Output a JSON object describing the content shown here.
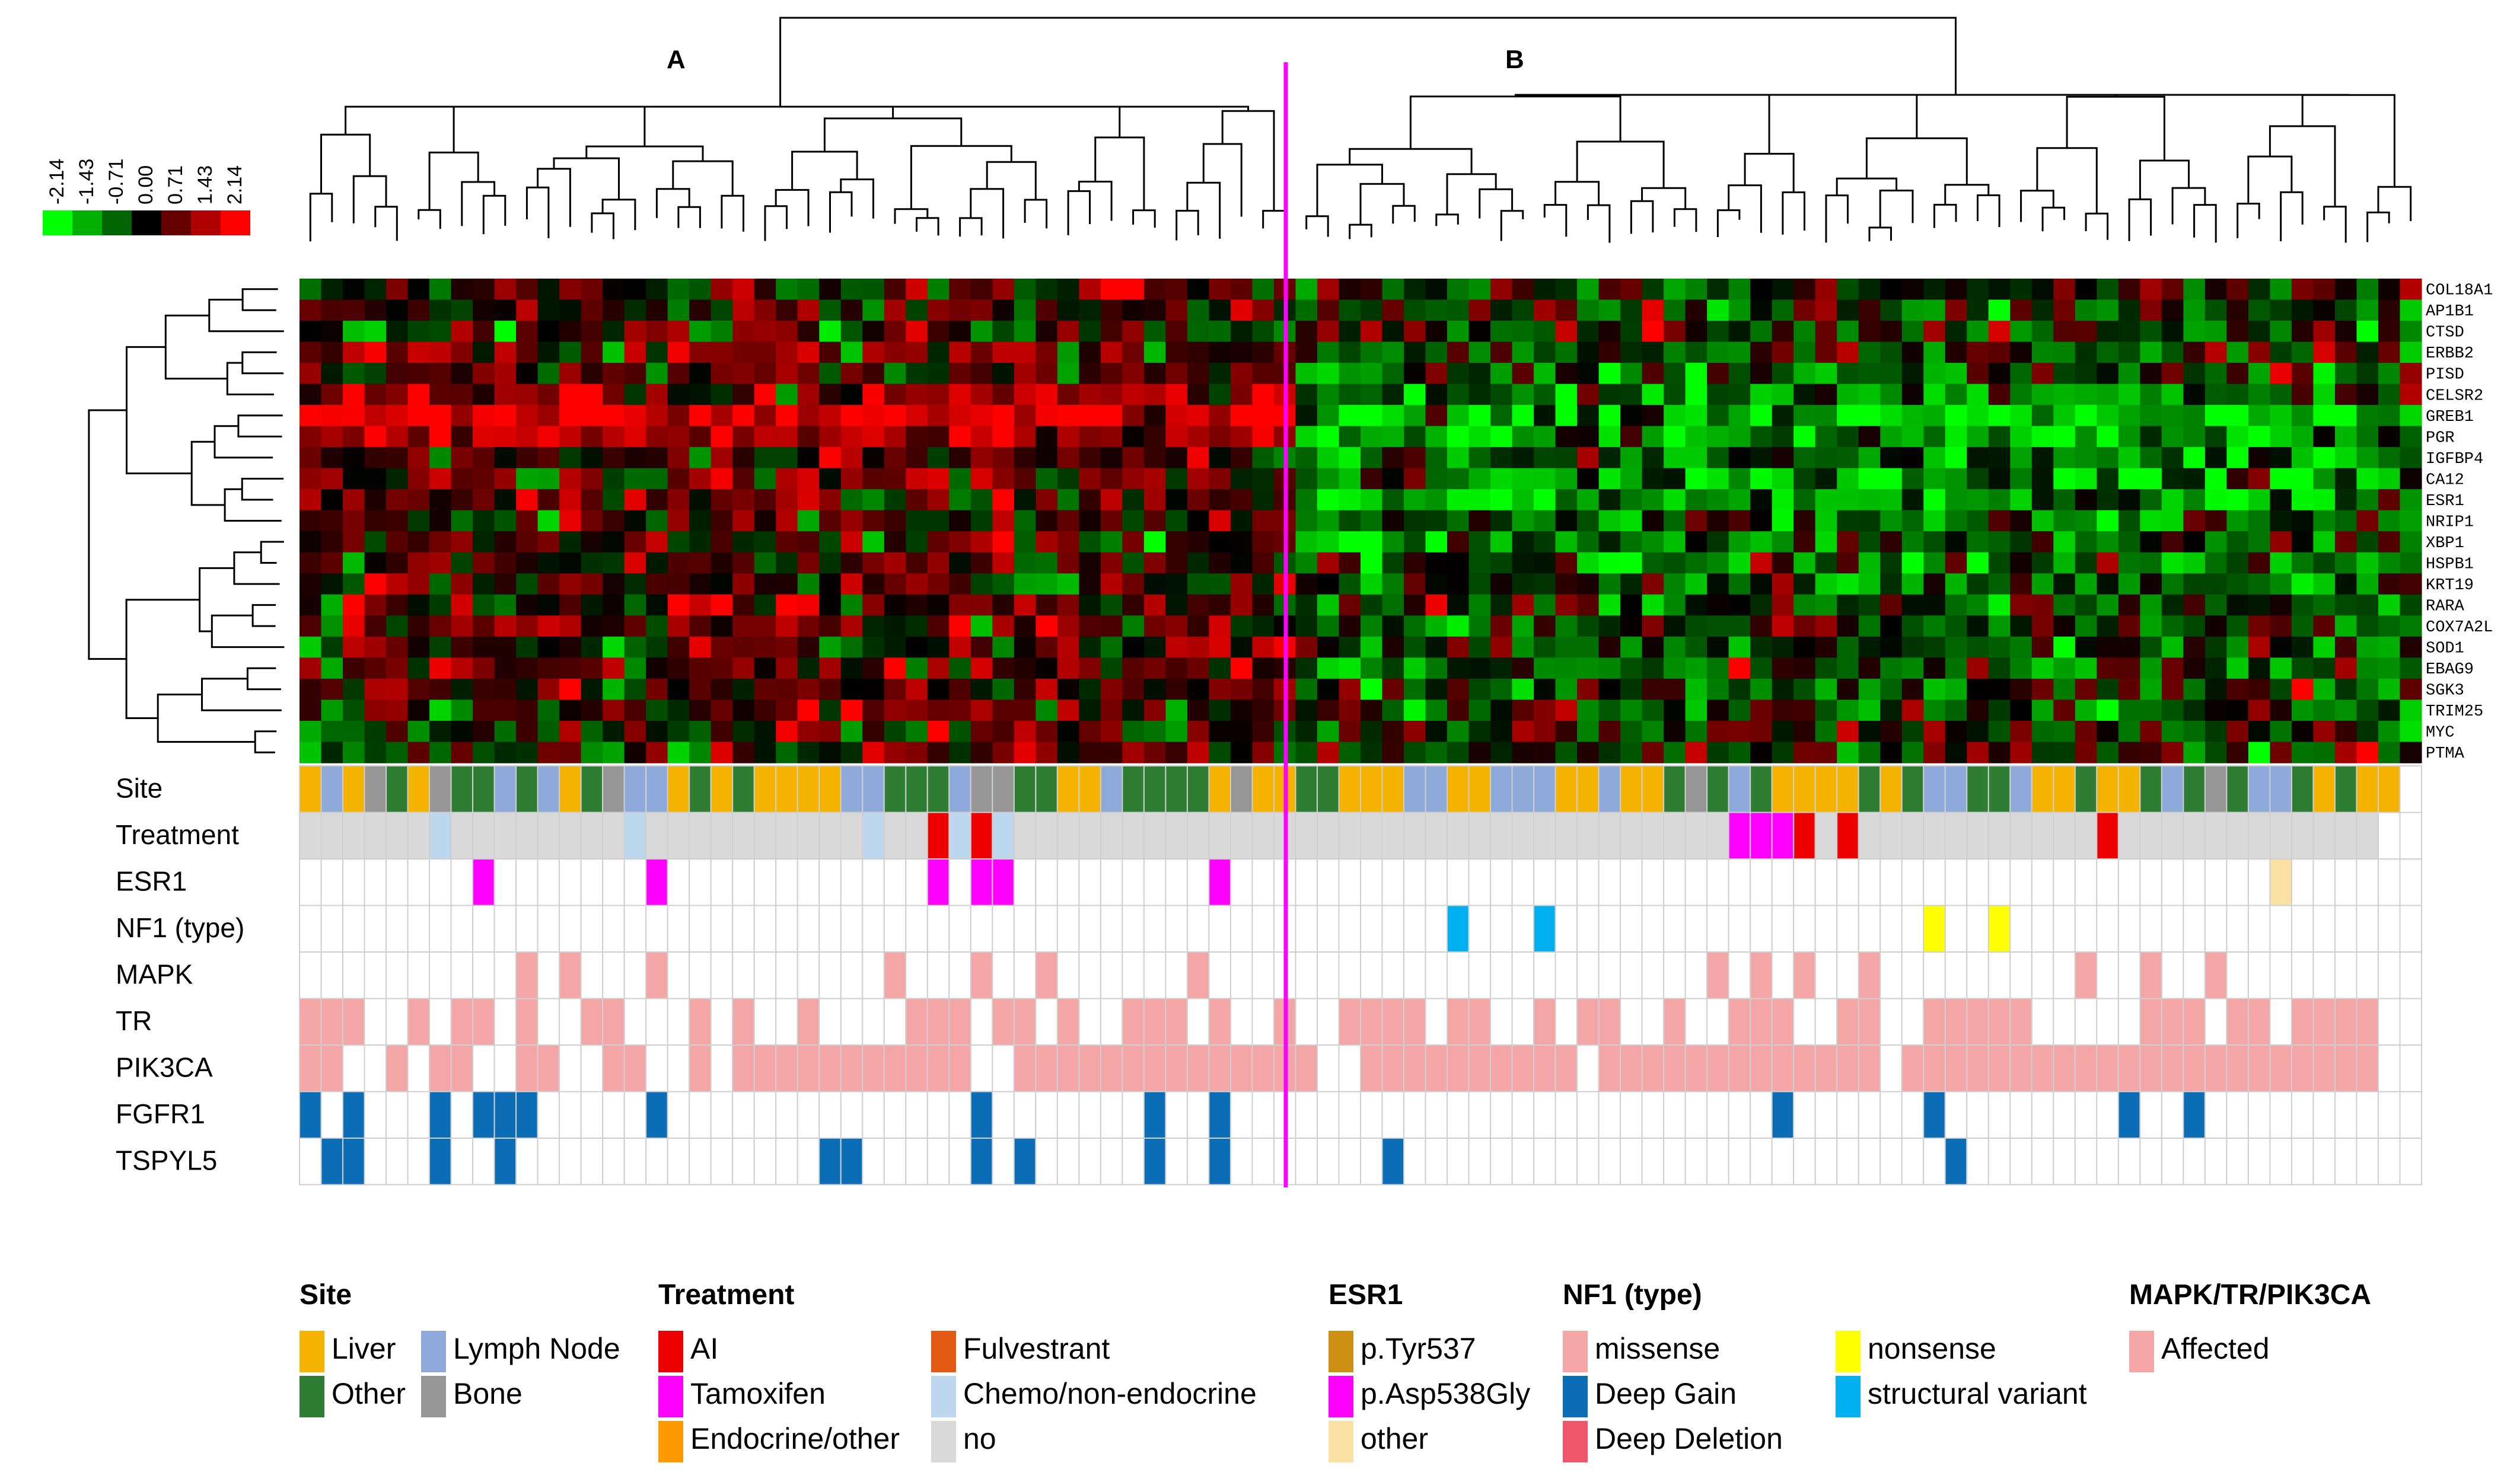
{
  "chart_data": {
    "type": "heatmap",
    "title": "",
    "clusters": [
      "A",
      "B"
    ],
    "split_after_sample": 46,
    "n_samples": 98,
    "color_scale": {
      "ticks": [
        "-2.14",
        "-1.43",
        "-0.71",
        "0.00",
        "0.71",
        "1.43",
        "2.14"
      ],
      "colors": [
        "#00ff00",
        "#00b000",
        "#006400",
        "#000000",
        "#640000",
        "#b00000",
        "#ff0000"
      ],
      "range": [
        -2.14,
        2.14
      ]
    },
    "genes": [
      "COL18A1",
      "AP1B1",
      "CTSD",
      "ERBB2",
      "PISD",
      "CELSR2",
      "GREB1",
      "PGR",
      "IGFBP4",
      "CA12",
      "ESR1",
      "NRIP1",
      "XBP1",
      "HSPB1",
      "KRT19",
      "RARA",
      "COX7A2L",
      "SOD1",
      "EBAG9",
      "SGK3",
      "TRIM25",
      "MYC",
      "PTMA"
    ],
    "gene_mean_A": [
      0.1,
      0.2,
      0.1,
      0.5,
      0.3,
      0.9,
      1.9,
      1.2,
      0.4,
      0.5,
      0.6,
      0.3,
      0.3,
      0.2,
      0.5,
      0.3,
      0.4,
      0.3,
      0.5,
      0.4,
      0.3,
      0.2,
      0.1
    ],
    "gene_mean_B": [
      -0.1,
      -0.1,
      -0.2,
      -0.2,
      -0.4,
      -0.8,
      -1.6,
      -1.3,
      -0.7,
      -1.0,
      -1.3,
      -0.8,
      -0.7,
      -0.6,
      -0.5,
      -0.5,
      -0.4,
      -0.4,
      -0.5,
      -0.3,
      -0.3,
      -0.1,
      -0.1
    ],
    "tracks": [
      "Site",
      "Treatment",
      "ESR1",
      "NF1 (type)",
      "MAPK",
      "TR",
      "PIK3CA",
      "FGFR1",
      "TSPYL5"
    ],
    "track_codes": {
      "Site": "LNLBOLBOONONLOBNNLOLOLLLLNNOOONBBOOLLNOOOOLBLLOOLLLNNLLNNNLLNLLOBONOLLLLOLONNOONLLOLLONOBONNOLOLL",
      "Treatment": "nnnnnncnnnnnnnncnnnnnnnnnncnnacacnnnnnnnnnnnnnnnnnnnnnnnnnnnnnnnnntttanannnnnnnnnnnannnnnnnnnnnn",
      "ESR1": "........p.......p............p.pp.........p................................................o....",
      "NF1 (type)": ".....................................................s...s.................y..y....................",
      "MAPK": "..........a.a...a..........a...a..a......a.......................a.a.a..a.........a..a..a........",
      "TR": "aaa..a.aa.a..aa...a.a..a....aaa.aa.a..aaa.a..a..aaaa.aa..a.aa..a..aaa..aa..aaaaa.....aaa.aa.aaaa.",
      "PIK3CA": "aa..a.aa..aa..aa..a.aaaaaaaaaaa..aaaaaaaaaaaaaa..aaaaaaaaaa.aaaaaaaaaaaaa.aaaaaaaaaaaaaaaaaaaaaa",
      "FGFR1": "g.g...g.ggg.....g..............g.......g..g.........................g......g........g..g.........",
      "TSPYL5": ".gg...g..g..............gg.....g.g.....g..g.......g.........................g....................."
    },
    "legend": [
      {
        "title": "Site",
        "items": [
          {
            "code": "L",
            "label": "Liver",
            "color": "#f5b300"
          },
          {
            "code": "N",
            "label": "Lymph Node",
            "color": "#8eaadb"
          },
          {
            "code": "O",
            "label": "Other",
            "color": "#2e7d32"
          },
          {
            "code": "B",
            "label": "Bone",
            "color": "#969696"
          }
        ]
      },
      {
        "title": "Treatment",
        "items": [
          {
            "code": "a",
            "label": "AI",
            "color": "#ee0000"
          },
          {
            "code": "f",
            "label": "Fulvestrant",
            "color": "#e25a14"
          },
          {
            "code": "t",
            "label": "Tamoxifen",
            "color": "#ff00ff"
          },
          {
            "code": "c",
            "label": "Chemo/non-endocrine",
            "color": "#bdd7ee"
          },
          {
            "code": "e",
            "label": "Endocrine/other",
            "color": "#ff9900"
          },
          {
            "code": "n",
            "label": "no",
            "color": "#d9d9d9"
          }
        ]
      },
      {
        "title": "ESR1",
        "items": [
          {
            "code": "y",
            "label": "p.Tyr537",
            "color": "#cc8f11"
          },
          {
            "code": "p",
            "label": "p.Asp538Gly",
            "color": "#ff00ff"
          },
          {
            "code": "o",
            "label": "other",
            "color": "#fbe0a4"
          }
        ]
      },
      {
        "title": "NF1 (type)",
        "items": [
          {
            "code": "m",
            "label": "missense",
            "color": "#f4a6a6"
          },
          {
            "code": "n2",
            "label": "nonsense",
            "color": "#ffff00"
          },
          {
            "code": "g",
            "label": "Deep Gain",
            "color": "#0a6db5"
          },
          {
            "code": "s",
            "label": "structural variant",
            "color": "#00b0f0"
          },
          {
            "code": "d",
            "label": "Deep Deletion",
            "color": "#f0556b"
          }
        ]
      },
      {
        "title": "MAPK/TR/PIK3CA",
        "items": [
          {
            "code": "a",
            "label": "Affected",
            "color": "#f4a6a6"
          }
        ]
      }
    ]
  }
}
